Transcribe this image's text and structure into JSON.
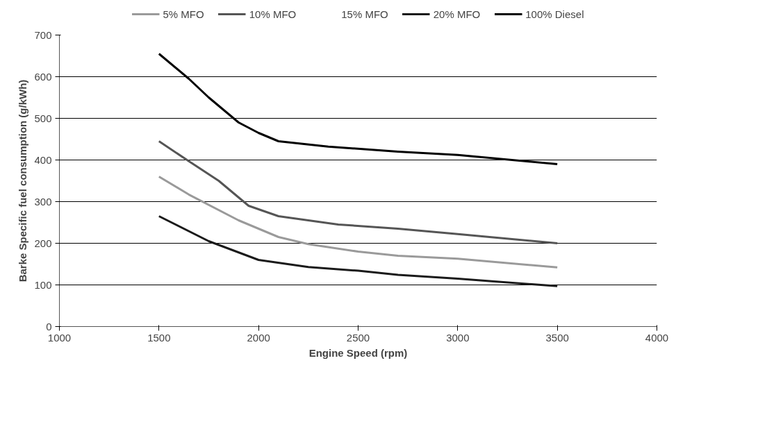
{
  "chart_data": {
    "type": "line",
    "xlabel": "Engine Speed (rpm)",
    "ylabel": "Barke Specific fuel consumption (g/kWh)",
    "xlim": [
      1000,
      4000
    ],
    "xticks": [
      1000,
      1500,
      2000,
      2500,
      3000,
      3500,
      4000
    ],
    "ylim": [
      0,
      700
    ],
    "yticks": [
      0,
      100,
      200,
      300,
      400,
      500,
      600,
      700
    ],
    "grid": "y",
    "legend": "top",
    "marker": "none",
    "line_style": "solid",
    "series": [
      {
        "name": "5% MFO",
        "color": "#9a9a9a",
        "x": [
          1500,
          1650,
          1900,
          2100,
          2250,
          2500,
          2700,
          3000,
          3500
        ],
        "values": [
          360,
          317,
          255,
          215,
          198,
          180,
          170,
          163,
          142
        ]
      },
      {
        "name": "10% MFO",
        "color": "#555555",
        "x": [
          1500,
          1650,
          1800,
          1950,
          2100,
          2400,
          2700,
          3000,
          3500
        ],
        "values": [
          445,
          397,
          350,
          290,
          265,
          245,
          235,
          222,
          200
        ]
      },
      {
        "name": "15% MFO"
      },
      {
        "name": "20% MFO",
        "color": "#1a1a1a",
        "x": [
          1500,
          1750,
          2000,
          2250,
          2500,
          2700,
          3000,
          3500
        ],
        "values": [
          265,
          205,
          160,
          143,
          134,
          124,
          115,
          97
        ]
      },
      {
        "name": "100% Diesel",
        "color": "#000000",
        "x": [
          1500,
          1650,
          1750,
          1900,
          2000,
          2100,
          2350,
          2700,
          3000,
          3500
        ],
        "values": [
          655,
          595,
          550,
          490,
          465,
          445,
          432,
          420,
          412,
          390
        ]
      }
    ]
  }
}
